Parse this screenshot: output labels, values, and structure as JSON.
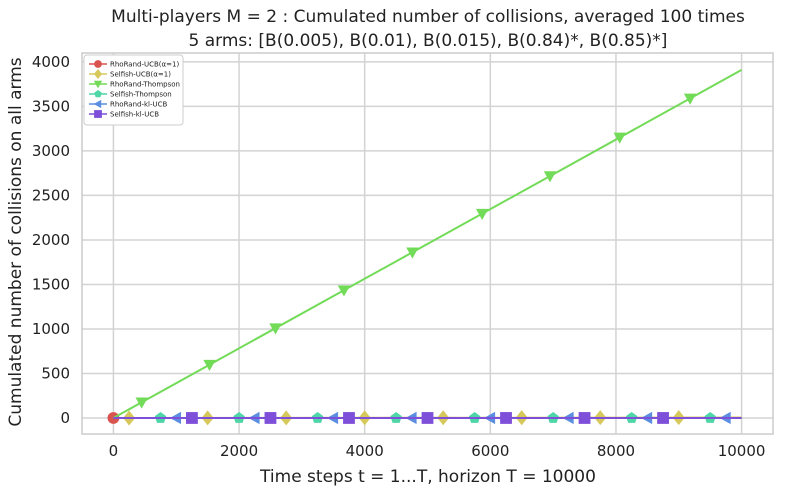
{
  "chart_data": {
    "type": "line",
    "title": "Multi-players M = 2 : Cumulated number of collisions, averaged 100 times",
    "subtitle": "5 arms: [B(0.005), B(0.01), B(0.015), B(0.84)*, B(0.85)*]",
    "xlabel": "Time steps t = 1...T, horizon T = 10000",
    "ylabel": "Cumulated number of collisions on all arms",
    "xlim": [
      -500,
      10500
    ],
    "ylim": [
      -180,
      4100
    ],
    "xticks": [
      0,
      2000,
      4000,
      6000,
      8000,
      10000
    ],
    "yticks": [
      0,
      500,
      1000,
      1500,
      2000,
      2500,
      3000,
      3500,
      4000
    ],
    "xtick_labels": [
      "0",
      "2000",
      "4000",
      "6000",
      "8000",
      "10000"
    ],
    "ytick_labels": [
      "0",
      "500",
      "1000",
      "1500",
      "2000",
      "2500",
      "3000",
      "3500",
      "4000"
    ],
    "grid": true,
    "legend_position": "top-left",
    "series": [
      {
        "name": "RhoRand-UCB(α=1)",
        "color": "#d9534f",
        "marker": "circle",
        "x": [
          0,
          10000
        ],
        "y": [
          0,
          0
        ],
        "marker_x": [
          0
        ]
      },
      {
        "name": "Selfish-UCB(α=1)",
        "color": "#d6c85a",
        "marker": "diamond",
        "x": [
          0,
          10000
        ],
        "y": [
          0,
          5
        ],
        "marker_x": [
          250,
          1500,
          2750,
          4000,
          5250,
          6500,
          7750,
          9000
        ]
      },
      {
        "name": "RhoRand-Thompson",
        "color": "#72db57",
        "marker": "triangle-down",
        "x": [
          0,
          10000
        ],
        "y": [
          0,
          3910
        ],
        "marker_x": [
          450,
          1530,
          2580,
          3670,
          4760,
          5870,
          6950,
          8060,
          9180
        ]
      },
      {
        "name": "Selfish-Thompson",
        "color": "#4fd6a6",
        "marker": "pentagon",
        "x": [
          0,
          10000
        ],
        "y": [
          0,
          0
        ],
        "marker_x": [
          750,
          2000,
          3250,
          4500,
          5750,
          7000,
          8250,
          9500
        ]
      },
      {
        "name": "RhoRand-kl-UCB",
        "color": "#5b8ee0",
        "marker": "triangle-left",
        "x": [
          0,
          10000
        ],
        "y": [
          0,
          0
        ],
        "marker_x": [
          1000,
          2250,
          3500,
          4750,
          6000,
          7250,
          8500,
          9750
        ]
      },
      {
        "name": "Selfish-kl-UCB",
        "color": "#7e4fd9",
        "marker": "square",
        "x": [
          0,
          10000
        ],
        "y": [
          0,
          0
        ],
        "marker_x": [
          1250,
          2500,
          3750,
          5000,
          6250,
          7500,
          8750
        ]
      }
    ]
  }
}
